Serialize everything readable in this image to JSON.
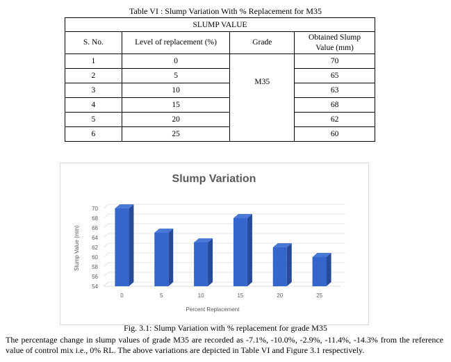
{
  "table": {
    "caption": "Table VI : Slump Variation With % Replacement for M35",
    "header": "SLUMP VALUE",
    "columns": [
      "S. No.",
      "Level of replacement (%)",
      "Grade",
      "Obtained Slump Value (mm)"
    ],
    "grade": "M35",
    "rows": [
      {
        "sno": "1",
        "level": "0",
        "value": "70"
      },
      {
        "sno": "2",
        "level": "5",
        "value": "65"
      },
      {
        "sno": "3",
        "level": "10",
        "value": "63"
      },
      {
        "sno": "4",
        "level": "15",
        "value": "68"
      },
      {
        "sno": "5",
        "level": "20",
        "value": "62"
      },
      {
        "sno": "6",
        "level": "25",
        "value": "60"
      }
    ]
  },
  "chart_data": {
    "type": "bar",
    "title": "Slump Variation",
    "xlabel": "Percent Replacement",
    "ylabel": "Slump Value (mm)",
    "categories": [
      "0",
      "5",
      "10",
      "15",
      "20",
      "25"
    ],
    "values": [
      70,
      65,
      63,
      68,
      62,
      60
    ],
    "yticks": [
      "54",
      "56",
      "58",
      "60",
      "62",
      "64",
      "66",
      "68",
      "70"
    ],
    "ylim": [
      54,
      71
    ],
    "grid": true,
    "bar_color": "#3566cc",
    "style": "3d-column"
  },
  "figure_caption": "Fig. 3.1: Slump Variation with % replacement for grade M35",
  "paragraph": "The percentage change in slump values of grade M35 are recorded as -7.1%, -10.0%, -2.9%, -11.4%, -14.3% from the reference value of control mix i.e., 0% RL. The above variations are depicted in Table VI and Figure 3.1 respectively."
}
